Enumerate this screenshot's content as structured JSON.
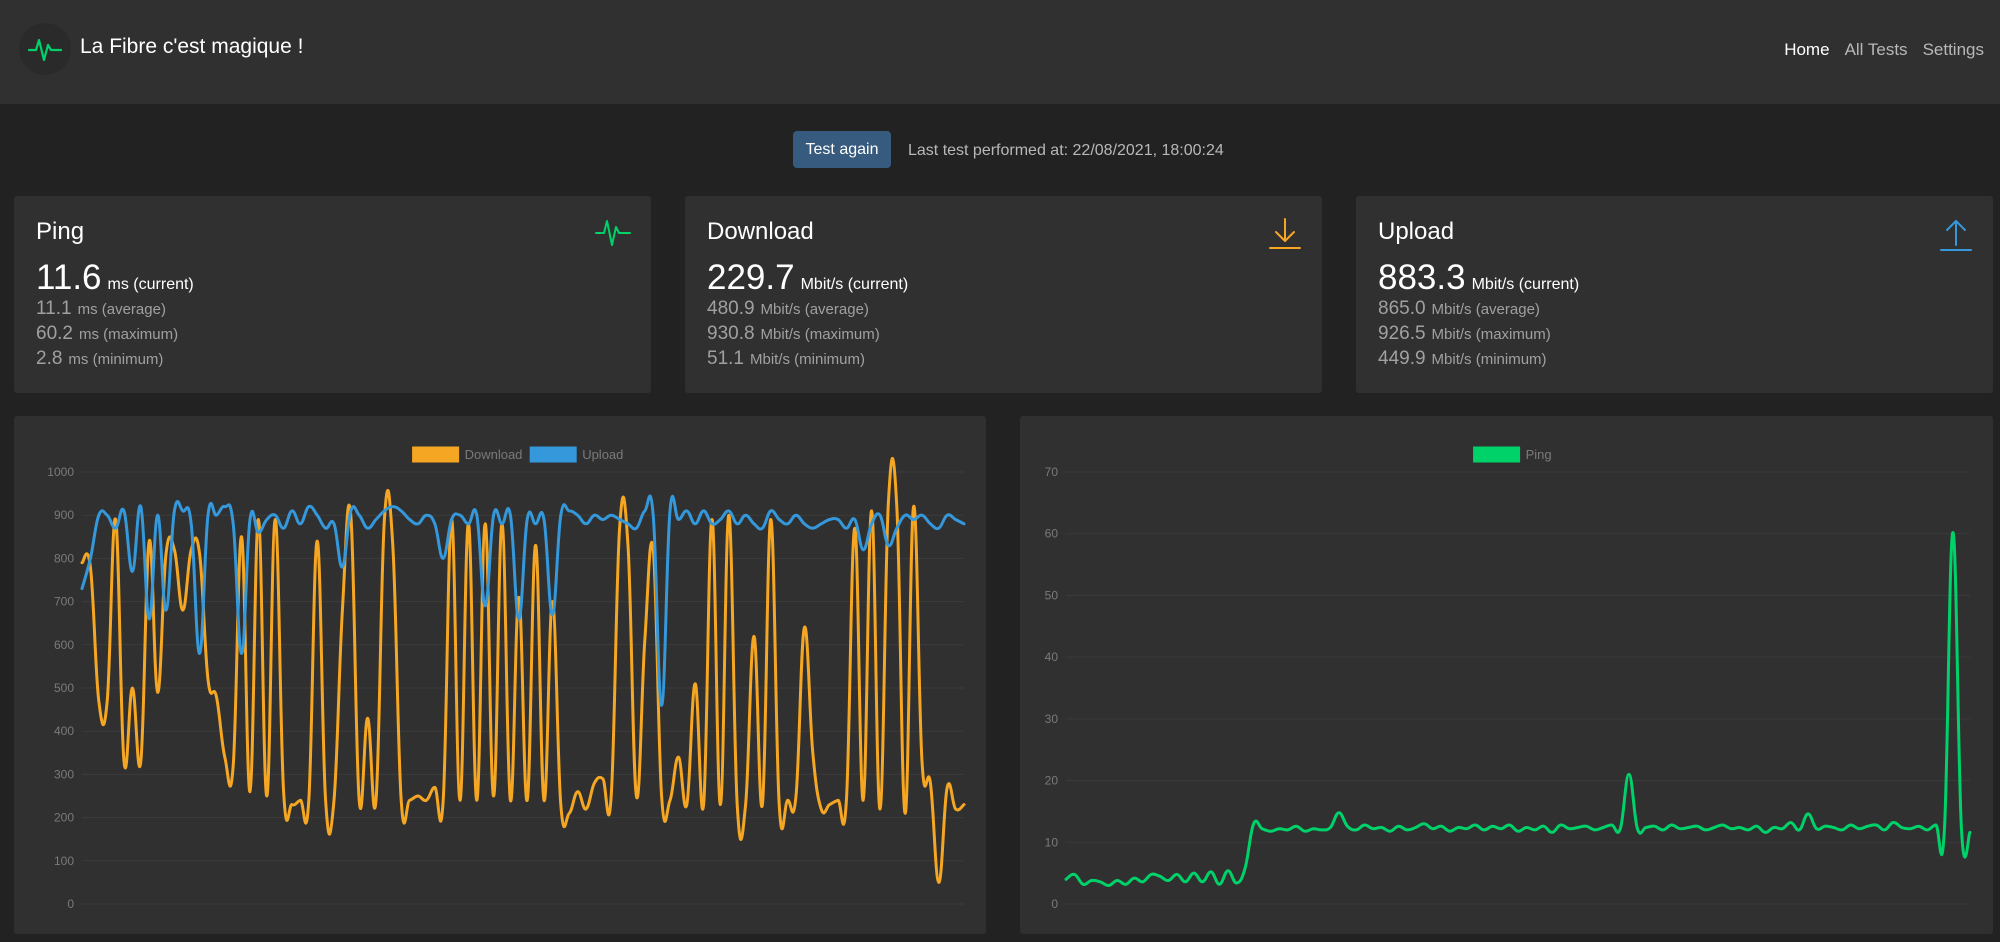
{
  "header": {
    "title": "La Fibre c'est magique !",
    "nav": [
      "Home",
      "All Tests",
      "Settings"
    ],
    "logo_icon": "pulse-icon",
    "accent": "#00d26a"
  },
  "toolbar": {
    "test_button": "Test again",
    "last_test": "Last test performed at: 22/08/2021, 18:00:24"
  },
  "cards": {
    "ping": {
      "title": "Ping",
      "icon": "pulse-icon",
      "color": "#00d26a",
      "current": "11.6",
      "current_unit": "ms (current)",
      "average": "11.1",
      "average_unit": "ms (average)",
      "maximum": "60.2",
      "maximum_unit": "ms (maximum)",
      "minimum": "2.8",
      "minimum_unit": "ms (minimum)"
    },
    "download": {
      "title": "Download",
      "icon": "download-icon",
      "color": "#f5a623",
      "current": "229.7",
      "current_unit": "Mbit/s (current)",
      "average": "480.9",
      "average_unit": "Mbit/s (average)",
      "maximum": "930.8",
      "maximum_unit": "Mbit/s (maximum)",
      "minimum": "51.1",
      "minimum_unit": "Mbit/s (minimum)"
    },
    "upload": {
      "title": "Upload",
      "icon": "upload-icon",
      "color": "#3498db",
      "current": "883.3",
      "current_unit": "Mbit/s (current)",
      "average": "865.0",
      "average_unit": "Mbit/s (average)",
      "maximum": "926.5",
      "maximum_unit": "Mbit/s (maximum)",
      "minimum": "449.9",
      "minimum_unit": "Mbit/s (minimum)"
    }
  },
  "chart_data": [
    {
      "type": "line",
      "title": "",
      "legend": [
        "Download",
        "Upload"
      ],
      "ylim": [
        0,
        1000
      ],
      "yticks": [
        0,
        100,
        200,
        300,
        400,
        500,
        600,
        700,
        800,
        900,
        1000
      ],
      "series": [
        {
          "name": "Download",
          "color": "#f5a623",
          "values": [
            790,
            780,
            470,
            470,
            890,
            330,
            500,
            330,
            840,
            490,
            810,
            820,
            680,
            820,
            810,
            520,
            480,
            340,
            320,
            850,
            260,
            890,
            250,
            890,
            260,
            230,
            240,
            240,
            840,
            240,
            240,
            680,
            900,
            240,
            430,
            240,
            890,
            830,
            240,
            240,
            250,
            240,
            270,
            240,
            890,
            240,
            880,
            240,
            880,
            250,
            880,
            240,
            710,
            240,
            830,
            240,
            700,
            230,
            210,
            260,
            220,
            280,
            290,
            250,
            870,
            830,
            250,
            610,
            820,
            250,
            240,
            340,
            230,
            510,
            230,
            890,
            230,
            900,
            230,
            230,
            620,
            230,
            890,
            230,
            240,
            250,
            640,
            350,
            220,
            230,
            240,
            240,
            870,
            240,
            910,
            220,
            930,
            920,
            210,
            920,
            330,
            280,
            50,
            270,
            220,
            230
          ]
        },
        {
          "name": "Upload",
          "color": "#3498db",
          "values": [
            730,
            800,
            900,
            900,
            870,
            910,
            770,
            920,
            660,
            900,
            680,
            910,
            910,
            880,
            580,
            900,
            900,
            920,
            880,
            580,
            890,
            860,
            890,
            900,
            870,
            910,
            880,
            920,
            900,
            870,
            880,
            780,
            910,
            900,
            870,
            890,
            910,
            920,
            910,
            890,
            880,
            900,
            880,
            800,
            890,
            900,
            880,
            900,
            690,
            900,
            880,
            900,
            660,
            890,
            880,
            890,
            670,
            900,
            910,
            900,
            880,
            900,
            890,
            900,
            890,
            880,
            870,
            910,
            900,
            460,
            910,
            890,
            910,
            880,
            910,
            880,
            890,
            910,
            880,
            900,
            880,
            870,
            910,
            890,
            880,
            900,
            880,
            870,
            880,
            890,
            890,
            870,
            890,
            820,
            880,
            900,
            830,
            870,
            900,
            890,
            900,
            880,
            870,
            900,
            890,
            880
          ]
        }
      ]
    },
    {
      "type": "line",
      "title": "",
      "legend": [
        "Ping"
      ],
      "ylim": [
        0,
        70
      ],
      "yticks": [
        0,
        10,
        20,
        30,
        40,
        50,
        60,
        70
      ],
      "series": [
        {
          "name": "Ping",
          "color": "#00d26a",
          "values": [
            4,
            4.8,
            3.2,
            3.8,
            3.6,
            3,
            3.8,
            3.2,
            4.2,
            3.6,
            4.8,
            4.5,
            3.8,
            4.8,
            3.6,
            5,
            3.6,
            5.2,
            3.2,
            5.4,
            3.4,
            5.8,
            13,
            12.2,
            11.8,
            12.2,
            12,
            12.6,
            11.8,
            12.2,
            12,
            12.4,
            14.8,
            12.6,
            12,
            12.8,
            12.2,
            12.4,
            11.8,
            12.6,
            12,
            12.4,
            13,
            12.2,
            12.6,
            11.8,
            12.4,
            12.2,
            12.8,
            12,
            12.6,
            12.2,
            12.8,
            11.8,
            12.4,
            12,
            12.6,
            11.6,
            12.8,
            12.2,
            12.4,
            12.6,
            12,
            12.4,
            12.8,
            12.2,
            21,
            12.2,
            12.4,
            12.6,
            12,
            12.8,
            12.2,
            12.4,
            12.6,
            12,
            12.4,
            12.8,
            12.2,
            12.4,
            12,
            12.6,
            11.6,
            12.4,
            12.2,
            13.2,
            12,
            14.6,
            12.2,
            12.6,
            12.4,
            12,
            12.8,
            12.2,
            12.6,
            12.8,
            12,
            13.2,
            12.4,
            12.2,
            12.6,
            12,
            12.8,
            12,
            60.2,
            12,
            11.6
          ]
        }
      ]
    }
  ]
}
